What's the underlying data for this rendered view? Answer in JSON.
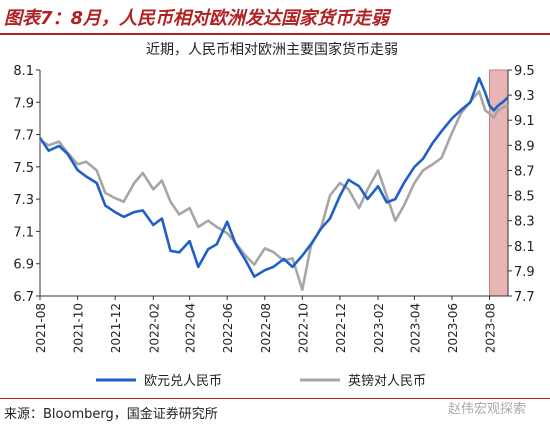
{
  "figure": {
    "title": "图表7：8月，人民币相对欧洲发达国家货币走弱",
    "source": "来源：Bloomberg，国金证券研究所",
    "watermark": "赵伟宏观探索"
  },
  "colors": {
    "brand": "#b22222",
    "eur_series": "#1f5fc8",
    "gbp_series": "#a6a6a6",
    "highlight": "#e8b4b4"
  },
  "chart_data": {
    "type": "line",
    "title": "近期，人民币相对欧洲主要国家货币走弱",
    "legend_position": "bottom",
    "grid": false,
    "x_type": "date",
    "xlim": [
      "2021-08-01",
      "2023-08-31"
    ],
    "x_ticks": [
      "2021-08",
      "2021-10",
      "2021-12",
      "2022-02",
      "2022-04",
      "2022-06",
      "2022-08",
      "2022-10",
      "2022-12",
      "2023-02",
      "2023-04",
      "2023-06",
      "2023-08"
    ],
    "left_axis": {
      "ylim": [
        6.7,
        8.1
      ],
      "ticks": [
        "6.7",
        "6.9",
        "7.1",
        "7.3",
        "7.5",
        "7.7",
        "7.9",
        "8.1"
      ]
    },
    "right_axis": {
      "ylim": [
        7.7,
        9.5
      ],
      "ticks": [
        "7.7",
        "7.9",
        "8.1",
        "8.3",
        "8.5",
        "8.7",
        "8.9",
        "9.1",
        "9.3",
        "9.5"
      ]
    },
    "highlight_region": {
      "start": "2023-08-01",
      "end": "2023-08-31"
    },
    "series": [
      {
        "name": "欧元兑人民币",
        "axis": "left",
        "points": [
          [
            "2021-08-01",
            7.68
          ],
          [
            "2021-08-15",
            7.6
          ],
          [
            "2021-09-01",
            7.63
          ],
          [
            "2021-09-15",
            7.58
          ],
          [
            "2021-10-01",
            7.48
          ],
          [
            "2021-10-15",
            7.44
          ],
          [
            "2021-11-01",
            7.4
          ],
          [
            "2021-11-15",
            7.26
          ],
          [
            "2021-12-01",
            7.22
          ],
          [
            "2021-12-15",
            7.19
          ],
          [
            "2022-01-01",
            7.22
          ],
          [
            "2022-01-15",
            7.23
          ],
          [
            "2022-02-01",
            7.14
          ],
          [
            "2022-02-15",
            7.18
          ],
          [
            "2022-03-01",
            6.98
          ],
          [
            "2022-03-15",
            6.97
          ],
          [
            "2022-04-01",
            7.04
          ],
          [
            "2022-04-15",
            6.88
          ],
          [
            "2022-05-01",
            6.99
          ],
          [
            "2022-05-15",
            7.02
          ],
          [
            "2022-06-01",
            7.16
          ],
          [
            "2022-06-15",
            7.02
          ],
          [
            "2022-07-01",
            6.92
          ],
          [
            "2022-07-15",
            6.82
          ],
          [
            "2022-08-01",
            6.86
          ],
          [
            "2022-08-15",
            6.88
          ],
          [
            "2022-09-01",
            6.93
          ],
          [
            "2022-09-15",
            6.88
          ],
          [
            "2022-10-01",
            6.95
          ],
          [
            "2022-10-15",
            7.02
          ],
          [
            "2022-11-01",
            7.12
          ],
          [
            "2022-11-15",
            7.18
          ],
          [
            "2022-12-01",
            7.32
          ],
          [
            "2022-12-15",
            7.42
          ],
          [
            "2023-01-01",
            7.38
          ],
          [
            "2023-01-15",
            7.3
          ],
          [
            "2023-02-01",
            7.38
          ],
          [
            "2023-02-15",
            7.28
          ],
          [
            "2023-03-01",
            7.3
          ],
          [
            "2023-03-15",
            7.4
          ],
          [
            "2023-04-01",
            7.5
          ],
          [
            "2023-04-15",
            7.55
          ],
          [
            "2023-05-01",
            7.65
          ],
          [
            "2023-05-15",
            7.72
          ],
          [
            "2023-06-01",
            7.8
          ],
          [
            "2023-06-15",
            7.85
          ],
          [
            "2023-07-01",
            7.9
          ],
          [
            "2023-07-15",
            8.05
          ],
          [
            "2023-07-25",
            7.96
          ],
          [
            "2023-08-01",
            7.88
          ],
          [
            "2023-08-08",
            7.85
          ],
          [
            "2023-08-15",
            7.88
          ],
          [
            "2023-08-22",
            7.9
          ],
          [
            "2023-08-31",
            7.93
          ]
        ]
      },
      {
        "name": "英镑对人民币",
        "axis": "right",
        "points": [
          [
            "2021-08-01",
            8.94
          ],
          [
            "2021-08-15",
            8.9
          ],
          [
            "2021-09-01",
            8.93
          ],
          [
            "2021-09-15",
            8.84
          ],
          [
            "2021-10-01",
            8.75
          ],
          [
            "2021-10-15",
            8.77
          ],
          [
            "2021-11-01",
            8.7
          ],
          [
            "2021-11-15",
            8.52
          ],
          [
            "2021-12-01",
            8.48
          ],
          [
            "2021-12-15",
            8.45
          ],
          [
            "2022-01-01",
            8.6
          ],
          [
            "2022-01-15",
            8.68
          ],
          [
            "2022-02-01",
            8.55
          ],
          [
            "2022-02-15",
            8.62
          ],
          [
            "2022-03-01",
            8.45
          ],
          [
            "2022-03-15",
            8.35
          ],
          [
            "2022-04-01",
            8.4
          ],
          [
            "2022-04-15",
            8.25
          ],
          [
            "2022-05-01",
            8.3
          ],
          [
            "2022-05-15",
            8.25
          ],
          [
            "2022-06-01",
            8.2
          ],
          [
            "2022-06-15",
            8.12
          ],
          [
            "2022-07-01",
            8.02
          ],
          [
            "2022-07-15",
            7.95
          ],
          [
            "2022-08-01",
            8.08
          ],
          [
            "2022-08-15",
            8.05
          ],
          [
            "2022-09-01",
            7.98
          ],
          [
            "2022-09-15",
            8.0
          ],
          [
            "2022-10-01",
            7.75
          ],
          [
            "2022-10-15",
            8.1
          ],
          [
            "2022-11-01",
            8.25
          ],
          [
            "2022-11-15",
            8.5
          ],
          [
            "2022-12-01",
            8.6
          ],
          [
            "2022-12-15",
            8.55
          ],
          [
            "2023-01-01",
            8.4
          ],
          [
            "2023-01-15",
            8.55
          ],
          [
            "2023-02-01",
            8.7
          ],
          [
            "2023-02-15",
            8.5
          ],
          [
            "2023-03-01",
            8.3
          ],
          [
            "2023-03-15",
            8.42
          ],
          [
            "2023-04-01",
            8.6
          ],
          [
            "2023-04-15",
            8.7
          ],
          [
            "2023-05-01",
            8.75
          ],
          [
            "2023-05-15",
            8.8
          ],
          [
            "2023-06-01",
            9.0
          ],
          [
            "2023-06-15",
            9.15
          ],
          [
            "2023-07-01",
            9.25
          ],
          [
            "2023-07-15",
            9.33
          ],
          [
            "2023-07-25",
            9.18
          ],
          [
            "2023-08-01",
            9.15
          ],
          [
            "2023-08-08",
            9.12
          ],
          [
            "2023-08-15",
            9.18
          ],
          [
            "2023-08-22",
            9.2
          ],
          [
            "2023-08-31",
            9.22
          ]
        ]
      }
    ]
  }
}
